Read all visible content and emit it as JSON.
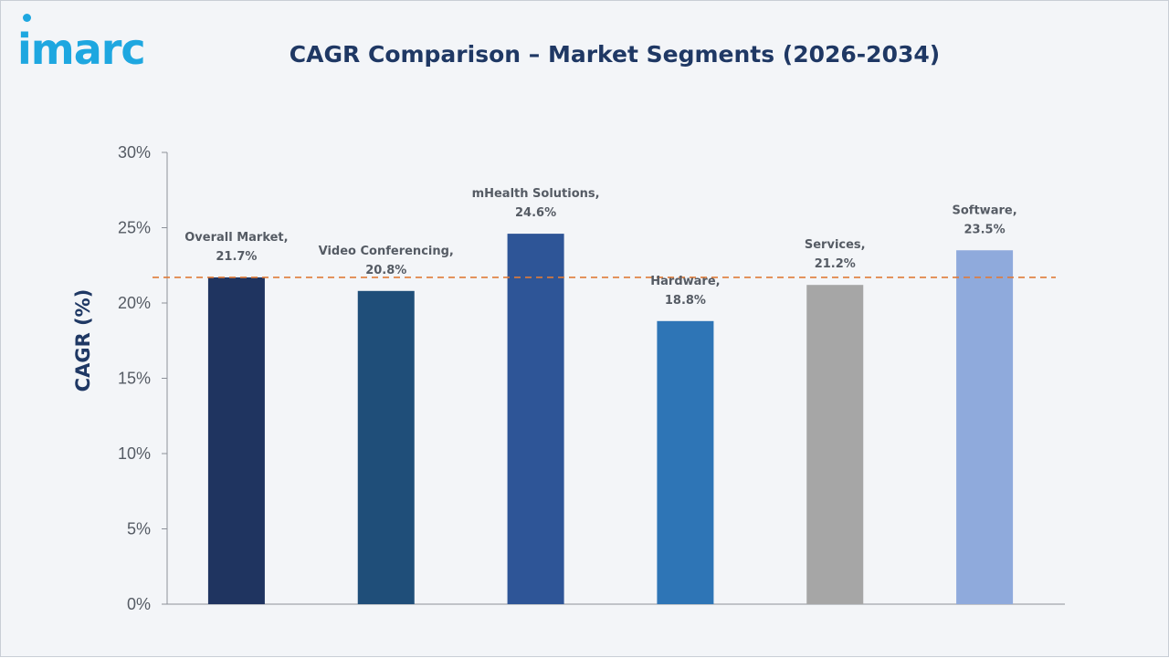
{
  "header": {
    "logo_text": "imarc"
  },
  "colors": {
    "logo": "#1ea7e0",
    "title": "#1f3864",
    "reference_line": "#e07b39"
  },
  "chart_data": {
    "type": "bar",
    "title": "CAGR Comparison – Market Segments (2026-2034)",
    "xlabel": "",
    "ylabel": "CAGR (%)",
    "ylim": [
      0,
      30
    ],
    "yticks": [
      0,
      5,
      10,
      15,
      20,
      25,
      30
    ],
    "ytick_labels": [
      "0%",
      "5%",
      "10%",
      "15%",
      "20%",
      "25%",
      "30%"
    ],
    "categories": [
      "Overall Market",
      "Video Conferencing",
      "mHealth Solutions",
      "Hardware",
      "Services",
      "Software"
    ],
    "values": [
      21.7,
      20.8,
      24.6,
      18.8,
      21.2,
      23.5
    ],
    "data_labels": [
      [
        "Overall Market,",
        "21.7%"
      ],
      [
        "Video Conferencing,",
        "20.8%"
      ],
      [
        "mHealth Solutions,",
        "24.6%"
      ],
      [
        "Hardware,",
        "18.8%"
      ],
      [
        "Services,",
        "21.2%"
      ],
      [
        "Software,",
        "23.5%"
      ]
    ],
    "bar_colors": [
      "#1f3460",
      "#1f4e79",
      "#2e5597",
      "#2e75b6",
      "#a6a6a6",
      "#8faadc"
    ],
    "reference_line": {
      "value": 21.7,
      "style": "dashed"
    },
    "grid": false,
    "legend": "none"
  }
}
